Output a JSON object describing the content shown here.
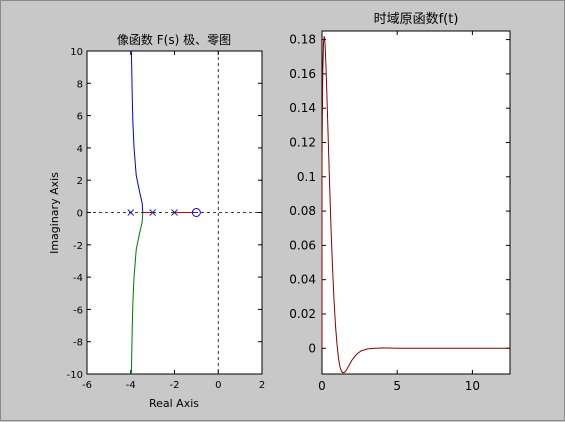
{
  "chart_data": [
    {
      "type": "scatter",
      "title": "像函数 F(s) 极、零图",
      "xlabel": "Real Axis",
      "ylabel": "Imaginary Axis",
      "xlim": [
        -6,
        2
      ],
      "ylim": [
        -10,
        10
      ],
      "xticks": [
        -6,
        -4,
        -2,
        0,
        2
      ],
      "yticks": [
        -10,
        -8,
        -6,
        -4,
        -2,
        0,
        2,
        4,
        6,
        8,
        10
      ],
      "grid": false,
      "poles": [
        [
          -4,
          0
        ],
        [
          -3,
          0
        ],
        [
          -2,
          0
        ]
      ],
      "zeros": [
        [
          -1,
          0
        ]
      ],
      "colors": {
        "branch_upper": "#0000cc",
        "branch_lower": "#007700",
        "branch_real": "#cc0000",
        "marker_pole": "#2222aa",
        "marker_zero": "#0000ff"
      },
      "root_locus": [
        {
          "x": [
            -3,
            -3.45
          ],
          "y": [
            0,
            0
          ]
        },
        {
          "x": [
            -3.45,
            -3.48,
            -3.6,
            -3.75,
            -3.85,
            -3.9,
            -3.93,
            -3.95,
            -3.97
          ],
          "y": [
            0,
            0.6,
            1.3,
            2.3,
            4,
            5.5,
            7,
            8.5,
            10
          ]
        },
        {
          "x": [
            -3.45,
            -3.48,
            -3.6,
            -3.75,
            -3.85,
            -3.9,
            -3.93,
            -3.95,
            -3.97
          ],
          "y": [
            0,
            -0.6,
            -1.3,
            -2.3,
            -4,
            -5.5,
            -7,
            -8.5,
            -10
          ]
        },
        {
          "x": [
            -2,
            -1
          ],
          "y": [
            0,
            0
          ]
        }
      ]
    },
    {
      "type": "line",
      "title": "时域原函数f(t)",
      "xlim": [
        0,
        12.5
      ],
      "ylim": [
        -0.015,
        0.185
      ],
      "xticks": [
        0,
        5,
        10
      ],
      "yticks": [
        0,
        0.02,
        0.04,
        0.06,
        0.08,
        0.1,
        0.12,
        0.14,
        0.16,
        0.18
      ],
      "ytick_labels": [
        "0",
        "0.02",
        "0.04",
        "0.06",
        "0.08",
        "0.1",
        "0.12",
        "0.14",
        "0.16",
        "0.18"
      ],
      "grid": false,
      "color": "#880000",
      "x": [
        0,
        0.05,
        0.1,
        0.15,
        0.2,
        0.25,
        0.3,
        0.4,
        0.5,
        0.6,
        0.7,
        0.8,
        0.9,
        1.0,
        1.1,
        1.2,
        1.3,
        1.4,
        1.5,
        1.6,
        1.8,
        2.0,
        2.3,
        2.6,
        3.0,
        3.5,
        4.0,
        5.0,
        6.0,
        8.0,
        10.0,
        12.5
      ],
      "y": [
        0.11,
        0.16,
        0.178,
        0.182,
        0.178,
        0.168,
        0.155,
        0.126,
        0.097,
        0.07,
        0.047,
        0.028,
        0.013,
        0.002,
        -0.006,
        -0.011,
        -0.0135,
        -0.0143,
        -0.014,
        -0.013,
        -0.01,
        -0.0068,
        -0.0035,
        -0.0015,
        -0.0004,
        0,
        0.0002,
        0,
        0,
        0,
        0,
        0
      ]
    }
  ]
}
